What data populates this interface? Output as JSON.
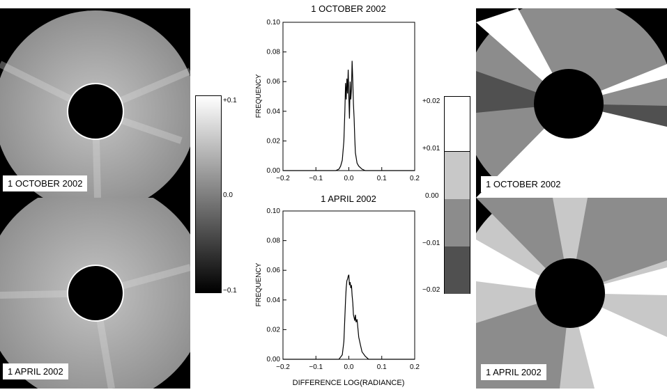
{
  "images": {
    "left_top_label": "1 OCTOBER 2002",
    "left_bottom_label": "1 APRIL 2002",
    "right_top_label": "1 OCTOBER 2002",
    "right_bottom_label": "1 APRIL 2002"
  },
  "colorbar_left": {
    "ticks": [
      "+0.1",
      "0.0",
      "−0.1"
    ]
  },
  "colorbar_right": {
    "ticks": [
      "+0.02",
      "+0.01",
      "0.00",
      "−0.01",
      "−0.02"
    ],
    "colors": [
      "#ffffff",
      "#c8c8c8",
      "#8c8c8c",
      "#505050"
    ]
  },
  "chart_data": [
    {
      "type": "line",
      "title": "1 OCTOBER 2002",
      "xlabel": "",
      "ylabel": "FREQUENCY",
      "xlim": [
        -0.2,
        0.2
      ],
      "ylim": [
        0,
        0.1
      ],
      "xticks": [
        "−0.2",
        "−0.1",
        "0.0",
        "0.1",
        "0.2"
      ],
      "yticks": [
        "0.00",
        "0.02",
        "0.04",
        "0.06",
        "0.08",
        "0.10"
      ],
      "x": [
        -0.2,
        -0.04,
        -0.03,
        -0.025,
        -0.02,
        -0.015,
        -0.012,
        -0.01,
        -0.008,
        -0.006,
        -0.004,
        -0.002,
        0.0,
        0.002,
        0.004,
        0.006,
        0.008,
        0.01,
        0.012,
        0.014,
        0.016,
        0.018,
        0.02,
        0.025,
        0.03,
        0.04,
        0.05,
        0.2
      ],
      "values": [
        0.0,
        0.0,
        0.001,
        0.003,
        0.007,
        0.02,
        0.04,
        0.059,
        0.048,
        0.062,
        0.052,
        0.068,
        0.05,
        0.035,
        0.06,
        0.048,
        0.055,
        0.074,
        0.06,
        0.045,
        0.035,
        0.022,
        0.012,
        0.005,
        0.003,
        0.001,
        0.0,
        0.0
      ]
    },
    {
      "type": "line",
      "title": "1 APRIL 2002",
      "xlabel": "DIFFERENCE LOG(RADIANCE)",
      "ylabel": "FREQUENCY",
      "xlim": [
        -0.2,
        0.2
      ],
      "ylim": [
        0,
        0.1
      ],
      "xticks": [
        "−0.2",
        "−0.1",
        "0.0",
        "0.1",
        "0.2"
      ],
      "yticks": [
        "0.00",
        "0.02",
        "0.04",
        "0.06",
        "0.08",
        "0.10"
      ],
      "x": [
        -0.2,
        -0.03,
        -0.02,
        -0.015,
        -0.01,
        -0.008,
        -0.006,
        -0.004,
        -0.002,
        0.0,
        0.002,
        0.004,
        0.006,
        0.008,
        0.01,
        0.012,
        0.014,
        0.016,
        0.018,
        0.02,
        0.022,
        0.025,
        0.028,
        0.03,
        0.035,
        0.04,
        0.05,
        0.06,
        0.2
      ],
      "values": [
        0.0,
        0.0,
        0.003,
        0.012,
        0.04,
        0.048,
        0.053,
        0.054,
        0.056,
        0.057,
        0.05,
        0.052,
        0.048,
        0.05,
        0.043,
        0.038,
        0.03,
        0.028,
        0.026,
        0.03,
        0.025,
        0.027,
        0.02,
        0.015,
        0.01,
        0.005,
        0.002,
        0.0,
        0.0
      ]
    }
  ]
}
